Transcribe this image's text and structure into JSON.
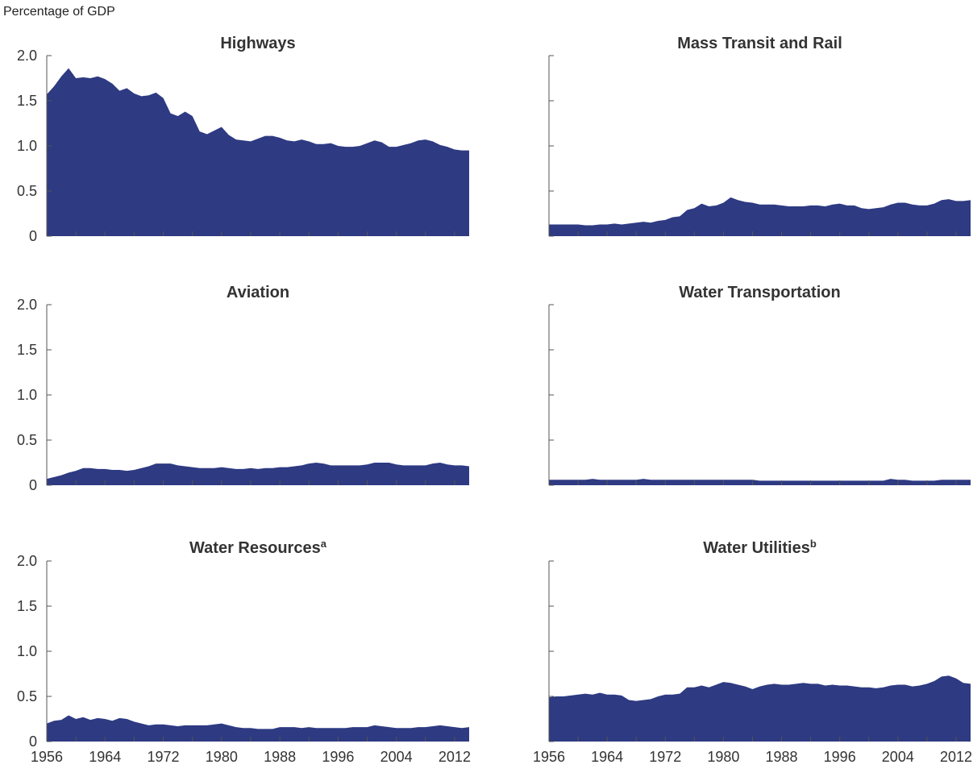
{
  "ylabel": "Percentage of GDP",
  "colors": {
    "area": "#2e3a82",
    "axis": "#555555",
    "text": "#333333"
  },
  "chart_data": [
    {
      "type": "area",
      "title": "Highways",
      "superscript": "",
      "xlim": [
        1956,
        2014
      ],
      "ylim": [
        0,
        2.0
      ],
      "yticks": [
        "0",
        "0.5",
        "1.0",
        "1.5",
        "2.0"
      ],
      "xticks": [],
      "x": [
        1956,
        1957,
        1958,
        1959,
        1960,
        1961,
        1962,
        1963,
        1964,
        1965,
        1966,
        1967,
        1968,
        1969,
        1970,
        1971,
        1972,
        1973,
        1974,
        1975,
        1976,
        1977,
        1978,
        1979,
        1980,
        1981,
        1982,
        1983,
        1984,
        1985,
        1986,
        1987,
        1988,
        1989,
        1990,
        1991,
        1992,
        1993,
        1994,
        1995,
        1996,
        1997,
        1998,
        1999,
        2000,
        2001,
        2002,
        2003,
        2004,
        2005,
        2006,
        2007,
        2008,
        2009,
        2010,
        2011,
        2012,
        2013,
        2014
      ],
      "values": [
        1.57,
        1.66,
        1.77,
        1.86,
        1.75,
        1.76,
        1.75,
        1.77,
        1.74,
        1.69,
        1.61,
        1.64,
        1.58,
        1.55,
        1.56,
        1.59,
        1.53,
        1.36,
        1.33,
        1.38,
        1.33,
        1.16,
        1.13,
        1.17,
        1.21,
        1.12,
        1.07,
        1.06,
        1.05,
        1.08,
        1.11,
        1.11,
        1.09,
        1.06,
        1.05,
        1.07,
        1.05,
        1.02,
        1.02,
        1.03,
        1.0,
        0.99,
        0.99,
        1.0,
        1.03,
        1.06,
        1.04,
        0.99,
        0.99,
        1.01,
        1.03,
        1.06,
        1.07,
        1.05,
        1.01,
        0.99,
        0.96,
        0.95,
        0.95
      ]
    },
    {
      "type": "area",
      "title": "Mass Transit and Rail",
      "superscript": "",
      "xlim": [
        1956,
        2014
      ],
      "ylim": [
        0,
        2.0
      ],
      "yticks": [],
      "xticks": [],
      "x": [
        1956,
        1957,
        1958,
        1959,
        1960,
        1961,
        1962,
        1963,
        1964,
        1965,
        1966,
        1967,
        1968,
        1969,
        1970,
        1971,
        1972,
        1973,
        1974,
        1975,
        1976,
        1977,
        1978,
        1979,
        1980,
        1981,
        1982,
        1983,
        1984,
        1985,
        1986,
        1987,
        1988,
        1989,
        1990,
        1991,
        1992,
        1993,
        1994,
        1995,
        1996,
        1997,
        1998,
        1999,
        2000,
        2001,
        2002,
        2003,
        2004,
        2005,
        2006,
        2007,
        2008,
        2009,
        2010,
        2011,
        2012,
        2013,
        2014
      ],
      "values": [
        0.13,
        0.13,
        0.13,
        0.13,
        0.13,
        0.12,
        0.12,
        0.13,
        0.13,
        0.14,
        0.13,
        0.14,
        0.15,
        0.16,
        0.15,
        0.17,
        0.18,
        0.21,
        0.22,
        0.29,
        0.31,
        0.36,
        0.33,
        0.34,
        0.37,
        0.43,
        0.4,
        0.38,
        0.37,
        0.35,
        0.35,
        0.35,
        0.34,
        0.33,
        0.33,
        0.33,
        0.34,
        0.34,
        0.33,
        0.35,
        0.36,
        0.34,
        0.34,
        0.31,
        0.3,
        0.31,
        0.32,
        0.35,
        0.37,
        0.37,
        0.35,
        0.34,
        0.34,
        0.36,
        0.4,
        0.41,
        0.39,
        0.39,
        0.4
      ]
    },
    {
      "type": "area",
      "title": "Aviation",
      "superscript": "",
      "xlim": [
        1956,
        2014
      ],
      "ylim": [
        0,
        2.0
      ],
      "yticks": [
        "0",
        "0.5",
        "1.0",
        "1.5",
        "2.0"
      ],
      "xticks": [],
      "x": [
        1956,
        1957,
        1958,
        1959,
        1960,
        1961,
        1962,
        1963,
        1964,
        1965,
        1966,
        1967,
        1968,
        1969,
        1970,
        1971,
        1972,
        1973,
        1974,
        1975,
        1976,
        1977,
        1978,
        1979,
        1980,
        1981,
        1982,
        1983,
        1984,
        1985,
        1986,
        1987,
        1988,
        1989,
        1990,
        1991,
        1992,
        1993,
        1994,
        1995,
        1996,
        1997,
        1998,
        1999,
        2000,
        2001,
        2002,
        2003,
        2004,
        2005,
        2006,
        2007,
        2008,
        2009,
        2010,
        2011,
        2012,
        2013,
        2014
      ],
      "values": [
        0.07,
        0.09,
        0.11,
        0.14,
        0.16,
        0.19,
        0.19,
        0.18,
        0.18,
        0.17,
        0.17,
        0.16,
        0.17,
        0.19,
        0.21,
        0.24,
        0.24,
        0.24,
        0.22,
        0.21,
        0.2,
        0.19,
        0.19,
        0.19,
        0.2,
        0.19,
        0.18,
        0.18,
        0.19,
        0.18,
        0.19,
        0.19,
        0.2,
        0.2,
        0.21,
        0.22,
        0.24,
        0.25,
        0.24,
        0.22,
        0.22,
        0.22,
        0.22,
        0.22,
        0.23,
        0.25,
        0.25,
        0.25,
        0.23,
        0.22,
        0.22,
        0.22,
        0.22,
        0.24,
        0.25,
        0.23,
        0.22,
        0.22,
        0.21
      ]
    },
    {
      "type": "area",
      "title": "Water Transportation",
      "superscript": "",
      "xlim": [
        1956,
        2014
      ],
      "ylim": [
        0,
        2.0
      ],
      "yticks": [],
      "xticks": [],
      "x": [
        1956,
        1957,
        1958,
        1959,
        1960,
        1961,
        1962,
        1963,
        1964,
        1965,
        1966,
        1967,
        1968,
        1969,
        1970,
        1971,
        1972,
        1973,
        1974,
        1975,
        1976,
        1977,
        1978,
        1979,
        1980,
        1981,
        1982,
        1983,
        1984,
        1985,
        1986,
        1987,
        1988,
        1989,
        1990,
        1991,
        1992,
        1993,
        1994,
        1995,
        1996,
        1997,
        1998,
        1999,
        2000,
        2001,
        2002,
        2003,
        2004,
        2005,
        2006,
        2007,
        2008,
        2009,
        2010,
        2011,
        2012,
        2013,
        2014
      ],
      "values": [
        0.06,
        0.06,
        0.06,
        0.06,
        0.06,
        0.06,
        0.07,
        0.06,
        0.06,
        0.06,
        0.06,
        0.06,
        0.06,
        0.07,
        0.06,
        0.06,
        0.06,
        0.06,
        0.06,
        0.06,
        0.06,
        0.06,
        0.06,
        0.06,
        0.06,
        0.06,
        0.06,
        0.06,
        0.06,
        0.05,
        0.05,
        0.05,
        0.05,
        0.05,
        0.05,
        0.05,
        0.05,
        0.05,
        0.05,
        0.05,
        0.05,
        0.05,
        0.05,
        0.05,
        0.05,
        0.05,
        0.05,
        0.07,
        0.06,
        0.06,
        0.05,
        0.05,
        0.05,
        0.05,
        0.06,
        0.06,
        0.06,
        0.06,
        0.06
      ]
    },
    {
      "type": "area",
      "title": "Water Resources",
      "superscript": "a",
      "xlim": [
        1956,
        2014
      ],
      "ylim": [
        0,
        2.0
      ],
      "yticks": [
        "0",
        "0.5",
        "1.0",
        "1.5",
        "2.0"
      ],
      "xticks": [
        "1956",
        "1964",
        "1972",
        "1980",
        "1988",
        "1996",
        "2004",
        "2012"
      ],
      "x": [
        1956,
        1957,
        1958,
        1959,
        1960,
        1961,
        1962,
        1963,
        1964,
        1965,
        1966,
        1967,
        1968,
        1969,
        1970,
        1971,
        1972,
        1973,
        1974,
        1975,
        1976,
        1977,
        1978,
        1979,
        1980,
        1981,
        1982,
        1983,
        1984,
        1985,
        1986,
        1987,
        1988,
        1989,
        1990,
        1991,
        1992,
        1993,
        1994,
        1995,
        1996,
        1997,
        1998,
        1999,
        2000,
        2001,
        2002,
        2003,
        2004,
        2005,
        2006,
        2007,
        2008,
        2009,
        2010,
        2011,
        2012,
        2013,
        2014
      ],
      "values": [
        0.2,
        0.23,
        0.24,
        0.29,
        0.25,
        0.27,
        0.24,
        0.26,
        0.25,
        0.23,
        0.26,
        0.25,
        0.22,
        0.2,
        0.18,
        0.19,
        0.19,
        0.18,
        0.17,
        0.18,
        0.18,
        0.18,
        0.18,
        0.19,
        0.2,
        0.18,
        0.16,
        0.15,
        0.15,
        0.14,
        0.14,
        0.14,
        0.16,
        0.16,
        0.16,
        0.15,
        0.16,
        0.15,
        0.15,
        0.15,
        0.15,
        0.15,
        0.16,
        0.16,
        0.16,
        0.18,
        0.17,
        0.16,
        0.15,
        0.15,
        0.15,
        0.16,
        0.16,
        0.17,
        0.18,
        0.17,
        0.16,
        0.15,
        0.16
      ]
    },
    {
      "type": "area",
      "title": "Water Utilities",
      "superscript": "b",
      "xlim": [
        1956,
        2014
      ],
      "ylim": [
        0,
        2.0
      ],
      "yticks": [],
      "xticks": [
        "1956",
        "1964",
        "1972",
        "1980",
        "1988",
        "1996",
        "2004",
        "2012"
      ],
      "x": [
        1956,
        1957,
        1958,
        1959,
        1960,
        1961,
        1962,
        1963,
        1964,
        1965,
        1966,
        1967,
        1968,
        1969,
        1970,
        1971,
        1972,
        1973,
        1974,
        1975,
        1976,
        1977,
        1978,
        1979,
        1980,
        1981,
        1982,
        1983,
        1984,
        1985,
        1986,
        1987,
        1988,
        1989,
        1990,
        1991,
        1992,
        1993,
        1994,
        1995,
        1996,
        1997,
        1998,
        1999,
        2000,
        2001,
        2002,
        2003,
        2004,
        2005,
        2006,
        2007,
        2008,
        2009,
        2010,
        2011,
        2012,
        2013,
        2014
      ],
      "values": [
        0.49,
        0.5,
        0.5,
        0.51,
        0.52,
        0.53,
        0.52,
        0.54,
        0.52,
        0.52,
        0.51,
        0.46,
        0.45,
        0.46,
        0.47,
        0.5,
        0.52,
        0.52,
        0.53,
        0.6,
        0.6,
        0.62,
        0.6,
        0.63,
        0.66,
        0.65,
        0.63,
        0.61,
        0.58,
        0.61,
        0.63,
        0.64,
        0.63,
        0.63,
        0.64,
        0.65,
        0.64,
        0.64,
        0.62,
        0.63,
        0.62,
        0.62,
        0.61,
        0.6,
        0.6,
        0.59,
        0.6,
        0.62,
        0.63,
        0.63,
        0.61,
        0.62,
        0.64,
        0.67,
        0.72,
        0.73,
        0.7,
        0.65,
        0.64
      ]
    }
  ]
}
